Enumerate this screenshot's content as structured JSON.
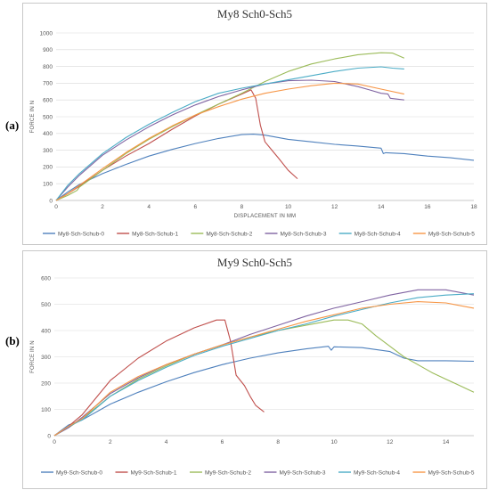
{
  "panel_labels": [
    "(a)",
    "(b)"
  ],
  "chart_data": [
    {
      "type": "line",
      "title": "My8 Sch0-Sch5",
      "xlabel": "DISPLACEMENT IN MM",
      "ylabel": "FORCE IN N",
      "xlim": [
        0,
        18
      ],
      "ylim": [
        0,
        1000
      ],
      "xticks": [
        0,
        2,
        4,
        6,
        8,
        10,
        12,
        14,
        16,
        18
      ],
      "yticks": [
        0,
        100,
        200,
        300,
        400,
        500,
        600,
        700,
        800,
        900,
        1000
      ],
      "grid": true,
      "legend": "bottom",
      "series": [
        {
          "name": "My8-Sch-Schub-0",
          "color": "#4f81bd",
          "x": [
            0,
            0.5,
            1,
            2,
            3,
            4,
            5,
            6,
            7,
            8,
            8.5,
            9,
            10,
            11,
            12,
            13,
            14,
            14.1,
            14.2,
            15,
            16,
            17,
            18
          ],
          "y": [
            0,
            50,
            95,
            160,
            215,
            265,
            305,
            340,
            370,
            393,
            396,
            390,
            365,
            350,
            335,
            325,
            312,
            280,
            285,
            280,
            265,
            255,
            240
          ]
        },
        {
          "name": "My8-Sch-Schub-1",
          "color": "#c0504d",
          "x": [
            0,
            0.5,
            1,
            2,
            3,
            4,
            5,
            6,
            7,
            8,
            8.4,
            8.6,
            8.8,
            9,
            9.3,
            9.6,
            10,
            10.4
          ],
          "y": [
            0,
            40,
            85,
            180,
            265,
            340,
            425,
            505,
            575,
            635,
            660,
            610,
            450,
            350,
            300,
            250,
            180,
            130
          ]
        },
        {
          "name": "My8-Sch-Schub-2",
          "color": "#9bbb59",
          "x": [
            0,
            0.5,
            0.9,
            1,
            2,
            3,
            4,
            5,
            6,
            7,
            8,
            9,
            10,
            11,
            12,
            13,
            14,
            14.5,
            15
          ],
          "y": [
            0,
            30,
            60,
            80,
            180,
            280,
            365,
            440,
            510,
            575,
            640,
            710,
            770,
            815,
            845,
            870,
            882,
            880,
            850
          ]
        },
        {
          "name": "My8-Sch-Schub-3",
          "color": "#8064a2",
          "x": [
            0,
            0.5,
            1,
            2,
            3,
            4,
            5,
            6,
            7,
            8,
            9,
            10,
            11,
            12,
            13,
            13.5,
            14,
            14.3,
            14.4,
            15
          ],
          "y": [
            0,
            80,
            150,
            270,
            360,
            440,
            510,
            570,
            620,
            660,
            695,
            715,
            718,
            710,
            680,
            660,
            640,
            635,
            610,
            600
          ]
        },
        {
          "name": "My8-Sch-Schub-4",
          "color": "#4bacc6",
          "x": [
            0,
            0.5,
            1,
            2,
            3,
            4,
            5,
            6,
            7,
            8,
            9,
            10,
            11,
            12,
            13,
            14,
            14.5,
            15
          ],
          "y": [
            0,
            90,
            160,
            280,
            375,
            455,
            525,
            590,
            640,
            670,
            695,
            720,
            745,
            770,
            790,
            798,
            790,
            785
          ]
        },
        {
          "name": "My8-Sch-Schub-5",
          "color": "#f79646",
          "x": [
            0,
            0.5,
            1,
            2,
            3,
            4,
            5,
            6,
            7,
            8,
            9,
            10,
            11,
            12,
            13,
            14,
            15
          ],
          "y": [
            0,
            40,
            90,
            190,
            285,
            370,
            445,
            510,
            560,
            605,
            640,
            665,
            685,
            700,
            695,
            665,
            635
          ]
        }
      ]
    },
    {
      "type": "line",
      "title": "My9 Sch0-Sch5",
      "xlabel": "",
      "ylabel": "FORCE IN N",
      "xlim": [
        0,
        15
      ],
      "ylim": [
        0,
        600
      ],
      "xticks": [
        0,
        2,
        4,
        6,
        8,
        10,
        12,
        14
      ],
      "yticks": [
        0,
        100,
        200,
        300,
        400,
        500,
        600
      ],
      "grid": true,
      "legend": "bottom",
      "series": [
        {
          "name": "My9-Sch-Schub-0",
          "color": "#4f81bd",
          "x": [
            0,
            0.5,
            1,
            2,
            3,
            4,
            5,
            6,
            7,
            8,
            9,
            9.8,
            9.9,
            10,
            11,
            12,
            12.5,
            13,
            14,
            15
          ],
          "y": [
            0,
            40,
            60,
            120,
            165,
            205,
            240,
            270,
            295,
            315,
            330,
            340,
            325,
            338,
            335,
            320,
            295,
            285,
            285,
            283
          ]
        },
        {
          "name": "My9-Sch-Schub-1",
          "color": "#c0504d",
          "x": [
            0,
            0.5,
            1,
            2,
            3,
            4,
            5,
            5.8,
            6.1,
            6.3,
            6.5,
            6.8,
            7,
            7.2,
            7.5
          ],
          "y": [
            0,
            35,
            80,
            210,
            295,
            360,
            410,
            440,
            440,
            360,
            230,
            190,
            150,
            115,
            90
          ]
        },
        {
          "name": "My9-Sch-Schub-2",
          "color": "#9bbb59",
          "x": [
            0,
            0.5,
            1,
            2,
            3,
            4,
            5,
            6,
            7,
            8,
            9,
            10,
            10.5,
            11,
            11.5,
            12,
            12.5,
            13,
            13.5,
            14,
            14.5,
            15
          ],
          "y": [
            0,
            30,
            65,
            150,
            215,
            265,
            310,
            345,
            375,
            400,
            420,
            440,
            440,
            425,
            380,
            340,
            300,
            270,
            240,
            215,
            190,
            165
          ]
        },
        {
          "name": "My9-Sch-Schub-3",
          "color": "#8064a2",
          "x": [
            0,
            0.5,
            1,
            2,
            3,
            4,
            5,
            6,
            7,
            8,
            9,
            10,
            11,
            12,
            13,
            14,
            15
          ],
          "y": [
            0,
            30,
            70,
            160,
            220,
            270,
            310,
            345,
            385,
            420,
            455,
            485,
            510,
            535,
            555,
            555,
            535
          ]
        },
        {
          "name": "My9-Sch-Schub-4",
          "color": "#4bacc6",
          "x": [
            0,
            0.5,
            1,
            2,
            3,
            4,
            5,
            6,
            7,
            8,
            9,
            10,
            11,
            12,
            13,
            14,
            15
          ],
          "y": [
            0,
            35,
            60,
            150,
            210,
            260,
            305,
            340,
            370,
            400,
            425,
            455,
            480,
            505,
            525,
            535,
            540
          ]
        },
        {
          "name": "My9-Sch-Schub-5",
          "color": "#f79646",
          "x": [
            0,
            0.5,
            1,
            2,
            3,
            4,
            5,
            6,
            7,
            8,
            9,
            10,
            11,
            12,
            13,
            14,
            15
          ],
          "y": [
            0,
            35,
            65,
            165,
            225,
            270,
            310,
            345,
            375,
            405,
            435,
            460,
            485,
            500,
            510,
            505,
            485
          ]
        }
      ]
    }
  ]
}
